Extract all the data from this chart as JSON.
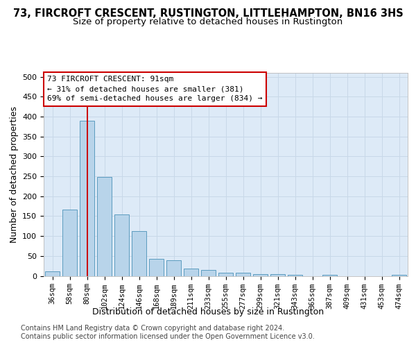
{
  "title": "73, FIRCROFT CRESCENT, RUSTINGTON, LITTLEHAMPTON, BN16 3HS",
  "subtitle": "Size of property relative to detached houses in Rustington",
  "xlabel": "Distribution of detached houses by size in Rustington",
  "ylabel": "Number of detached properties",
  "categories": [
    "36sqm",
    "58sqm",
    "80sqm",
    "102sqm",
    "124sqm",
    "146sqm",
    "168sqm",
    "189sqm",
    "211sqm",
    "233sqm",
    "255sqm",
    "277sqm",
    "299sqm",
    "321sqm",
    "343sqm",
    "365sqm",
    "387sqm",
    "409sqm",
    "431sqm",
    "453sqm",
    "474sqm"
  ],
  "values": [
    11,
    167,
    390,
    248,
    155,
    113,
    42,
    40,
    18,
    14,
    8,
    7,
    5,
    4,
    3,
    0,
    2,
    0,
    0,
    0,
    3
  ],
  "bar_color": "#b8d4ea",
  "bar_edge_color": "#5b9bbf",
  "vline_color": "#cc0000",
  "vline_x": 2.02,
  "annotation_text": "73 FIRCROFT CRESCENT: 91sqm\n← 31% of detached houses are smaller (381)\n69% of semi-detached houses are larger (834) →",
  "annotation_box_facecolor": "white",
  "annotation_box_edgecolor": "#cc0000",
  "grid_color": "#c8d8e8",
  "background_color": "#ddeaf7",
  "ylim": [
    0,
    510
  ],
  "yticks": [
    0,
    50,
    100,
    150,
    200,
    250,
    300,
    350,
    400,
    450,
    500
  ],
  "footer_line1": "Contains HM Land Registry data © Crown copyright and database right 2024.",
  "footer_line2": "Contains public sector information licensed under the Open Government Licence v3.0.",
  "title_fontsize": 10.5,
  "subtitle_fontsize": 9.5,
  "tick_fontsize": 7.5,
  "ylabel_fontsize": 9,
  "xlabel_fontsize": 9,
  "annotation_fontsize": 8,
  "footer_fontsize": 7
}
